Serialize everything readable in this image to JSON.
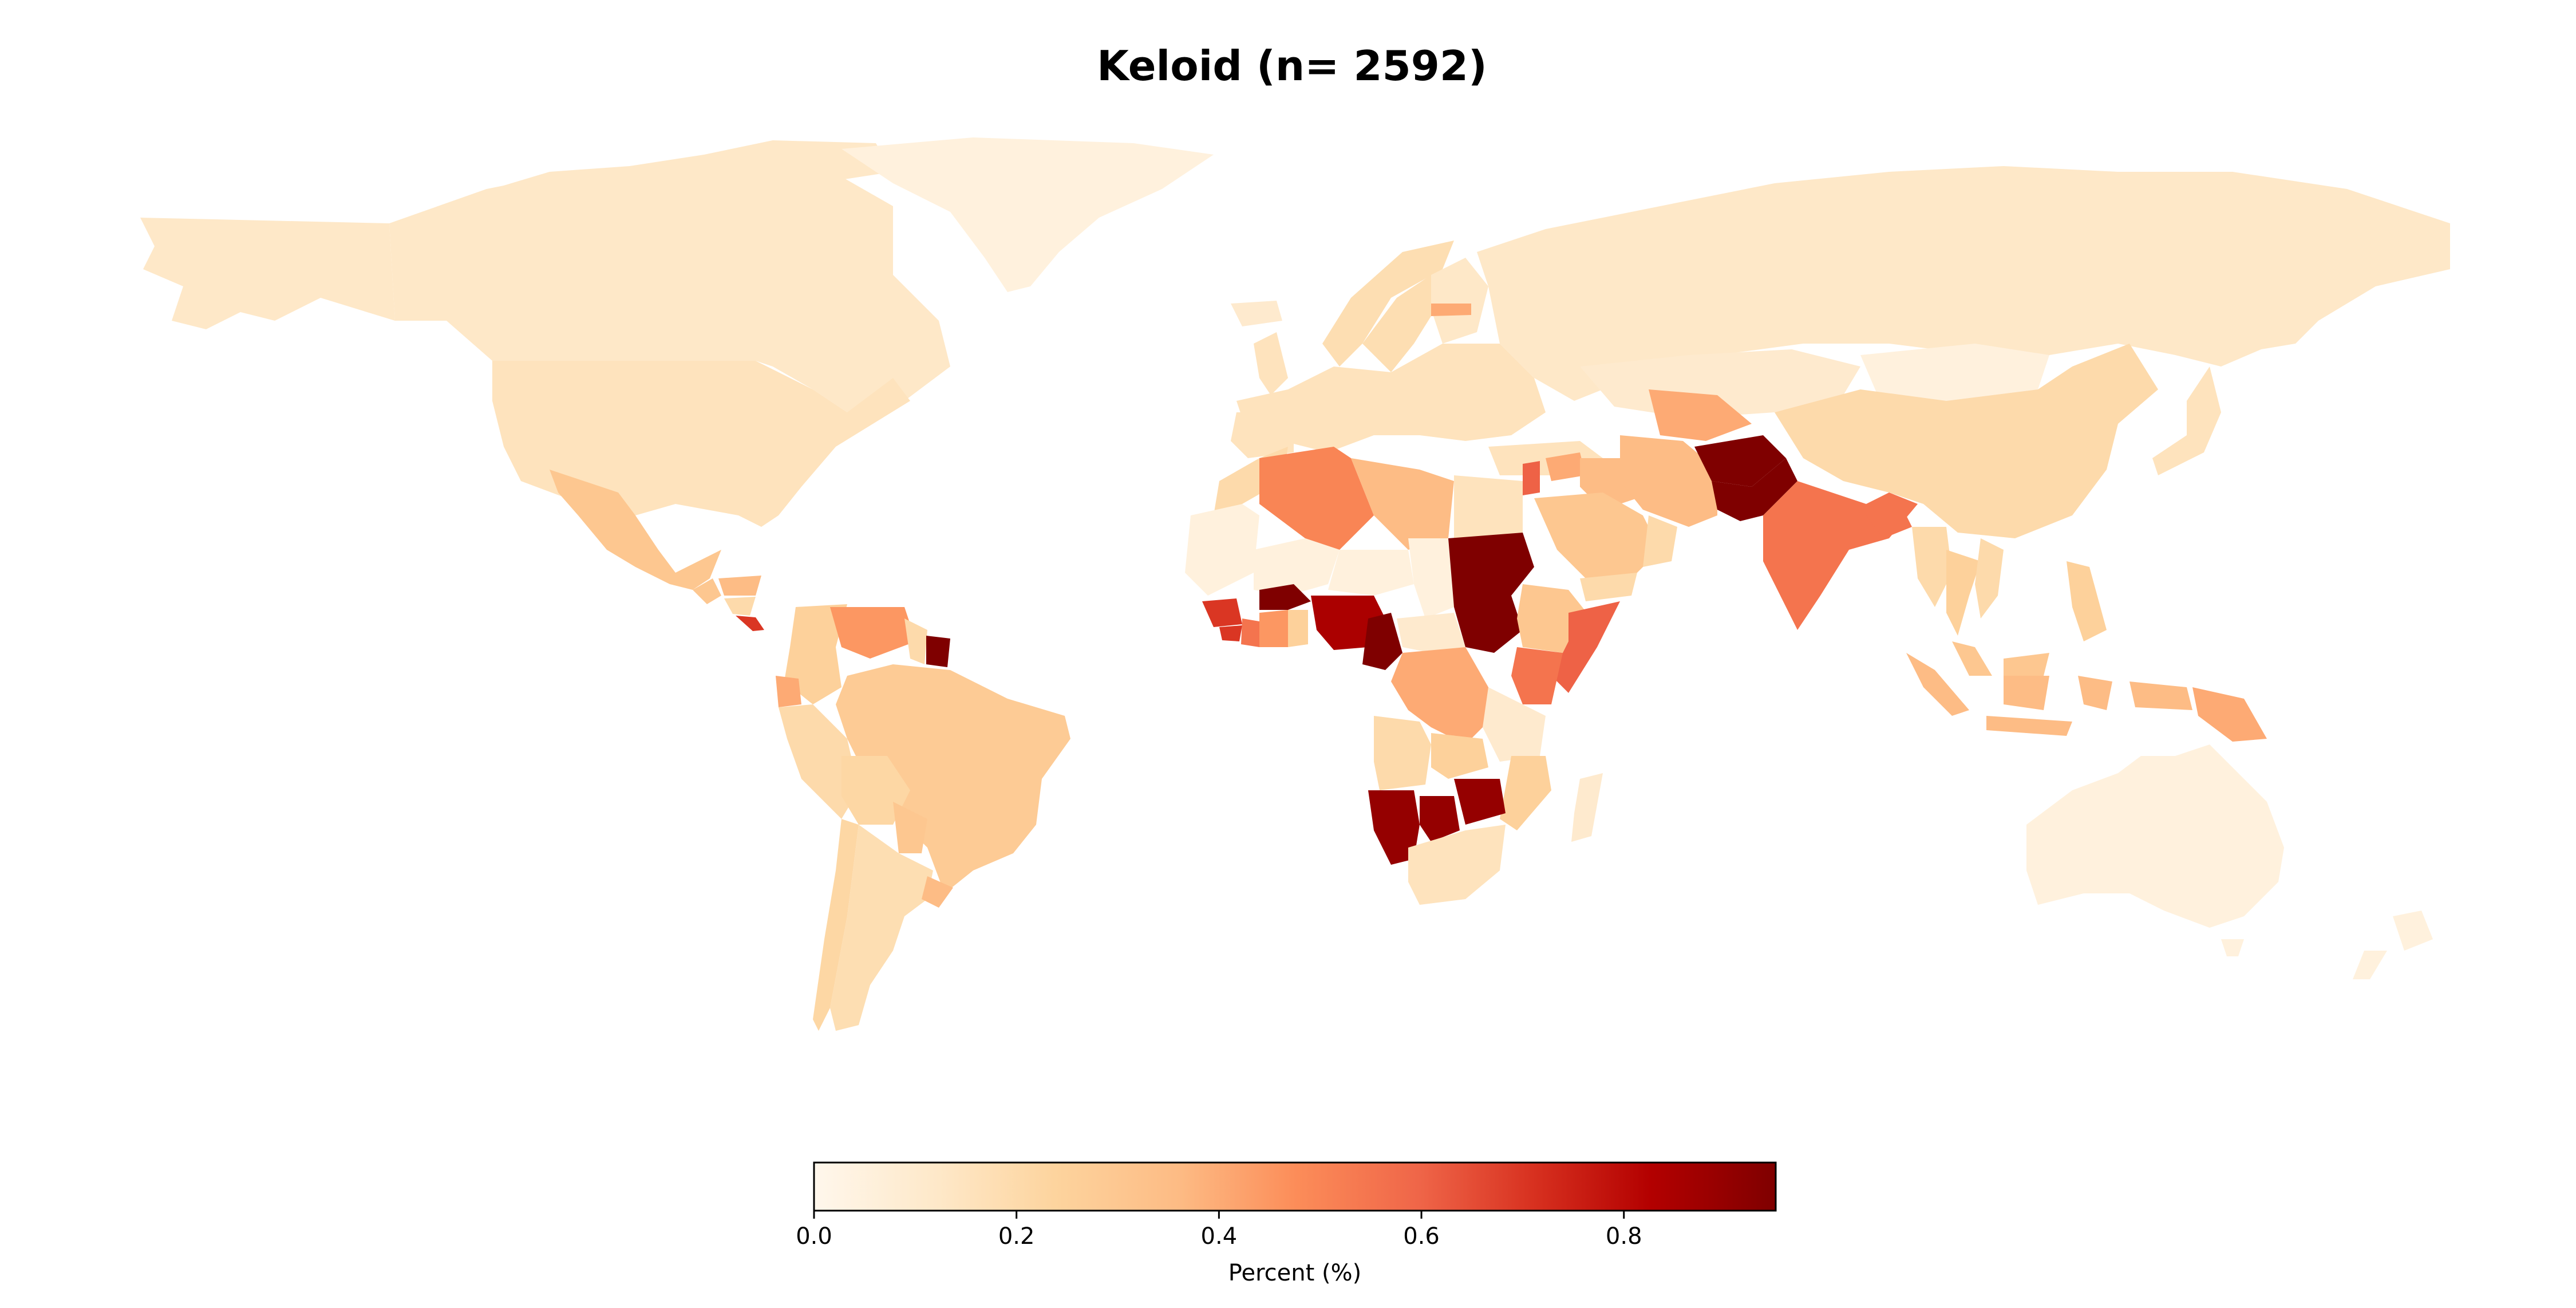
{
  "title": "Keloid (n= 2592)",
  "colorbar": {
    "label": "Percent (%)",
    "ticks": [
      {
        "value": 0.0,
        "label": "0.0"
      },
      {
        "value": 0.2,
        "label": "0.2"
      },
      {
        "value": 0.4,
        "label": "0.4"
      },
      {
        "value": 0.6,
        "label": "0.6"
      },
      {
        "value": 0.8,
        "label": "0.8"
      }
    ],
    "range": [
      0.0,
      0.95
    ],
    "colormap": "OrRd"
  },
  "colors": {
    "c0": "#fff7ec",
    "c1": "#fee8c8",
    "c2": "#fdd49e",
    "c3": "#fdbb84",
    "c4": "#fc8d59",
    "c5": "#ef6548",
    "c6": "#d7301f",
    "c7": "#b30000",
    "c8": "#7f0000"
  },
  "chart_data": {
    "type": "choropleth",
    "title": "Keloid (n= 2592)",
    "value_label": "Percent (%)",
    "value_range": [
      0.0,
      0.95
    ],
    "regions": [
      {
        "name": "Canada",
        "value": 0.12
      },
      {
        "name": "Alaska (United States)",
        "value": 0.12
      },
      {
        "name": "Greenland",
        "value": 0.05
      },
      {
        "name": "United States",
        "value": 0.15
      },
      {
        "name": "Mexico",
        "value": 0.3
      },
      {
        "name": "Guatemala",
        "value": 0.3
      },
      {
        "name": "Honduras",
        "value": 0.35
      },
      {
        "name": "Nicaragua",
        "value": 0.2
      },
      {
        "name": "Costa Rica",
        "value": 0.7
      },
      {
        "name": "Colombia",
        "value": 0.25
      },
      {
        "name": "Venezuela",
        "value": 0.45
      },
      {
        "name": "Guyana",
        "value": 0.2
      },
      {
        "name": "Suriname",
        "value": 0.95
      },
      {
        "name": "Ecuador",
        "value": 0.4
      },
      {
        "name": "Peru",
        "value": 0.2
      },
      {
        "name": "Brazil",
        "value": 0.28
      },
      {
        "name": "Bolivia",
        "value": 0.22
      },
      {
        "name": "Paraguay",
        "value": 0.3
      },
      {
        "name": "Argentina",
        "value": 0.18
      },
      {
        "name": "Chile",
        "value": 0.22
      },
      {
        "name": "Uruguay",
        "value": 0.35
      },
      {
        "name": "Iceland",
        "value": 0.1
      },
      {
        "name": "Norway",
        "value": 0.18
      },
      {
        "name": "Sweden",
        "value": 0.18
      },
      {
        "name": "Finland",
        "value": 0.12
      },
      {
        "name": "United Kingdom",
        "value": 0.15
      },
      {
        "name": "Latvia",
        "value": 0.4
      },
      {
        "name": "Europe (other)",
        "value": 0.15
      },
      {
        "name": "Russia",
        "value": 0.12
      },
      {
        "name": "Kazakhstan",
        "value": 0.1
      },
      {
        "name": "Mongolia",
        "value": 0.05
      },
      {
        "name": "China",
        "value": 0.2
      },
      {
        "name": "Japan",
        "value": 0.15
      },
      {
        "name": "Turkey",
        "value": 0.15
      },
      {
        "name": "Morocco",
        "value": 0.2
      },
      {
        "name": "Algeria",
        "value": 0.5
      },
      {
        "name": "Libya",
        "value": 0.35
      },
      {
        "name": "Egypt",
        "value": 0.15
      },
      {
        "name": "Western Sahara / Mauritania",
        "value": 0.05
      },
      {
        "name": "Mali",
        "value": 0.05
      },
      {
        "name": "Niger",
        "value": 0.05
      },
      {
        "name": "Chad",
        "value": 0.05
      },
      {
        "name": "Sudan",
        "value": 0.95
      },
      {
        "name": "South Sudan",
        "value": 0.95
      },
      {
        "name": "Ethiopia",
        "value": 0.3
      },
      {
        "name": "Somalia",
        "value": 0.6
      },
      {
        "name": "Kenya",
        "value": 0.55
      },
      {
        "name": "Tanzania",
        "value": 0.1
      },
      {
        "name": "Guinea",
        "value": 0.7
      },
      {
        "name": "Sierra Leone",
        "value": 0.7
      },
      {
        "name": "Liberia",
        "value": 0.55
      },
      {
        "name": "Cote d'Ivoire",
        "value": 0.45
      },
      {
        "name": "Ghana",
        "value": 0.25
      },
      {
        "name": "Burkina Faso",
        "value": 0.95
      },
      {
        "name": "Nigeria",
        "value": 0.85
      },
      {
        "name": "Cameroon",
        "value": 0.95
      },
      {
        "name": "Central African Republic",
        "value": 0.1
      },
      {
        "name": "DR Congo",
        "value": 0.4
      },
      {
        "name": "Angola",
        "value": 0.2
      },
      {
        "name": "Zambia",
        "value": 0.25
      },
      {
        "name": "Namibia",
        "value": 0.9
      },
      {
        "name": "Botswana",
        "value": 0.9
      },
      {
        "name": "Zimbabwe",
        "value": 0.9
      },
      {
        "name": "Mozambique",
        "value": 0.25
      },
      {
        "name": "South Africa",
        "value": 0.15
      },
      {
        "name": "Madagascar",
        "value": 0.1
      },
      {
        "name": "Saudi Arabia",
        "value": 0.3
      },
      {
        "name": "Yemen",
        "value": 0.2
      },
      {
        "name": "Oman",
        "value": 0.2
      },
      {
        "name": "Iran",
        "value": 0.35
      },
      {
        "name": "Iraq",
        "value": 0.35
      },
      {
        "name": "Syria",
        "value": 0.4
      },
      {
        "name": "Lebanon / Israel",
        "value": 0.6
      },
      {
        "name": "Turkmenistan / Uzbekistan",
        "value": 0.4
      },
      {
        "name": "Afghanistan",
        "value": 0.95
      },
      {
        "name": "Pakistan",
        "value": 0.95
      },
      {
        "name": "India",
        "value": 0.55
      },
      {
        "name": "Bangladesh",
        "value": 0.55
      },
      {
        "name": "Myanmar",
        "value": 0.2
      },
      {
        "name": "Thailand",
        "value": 0.25
      },
      {
        "name": "Vietnam",
        "value": 0.2
      },
      {
        "name": "Philippines",
        "value": 0.25
      },
      {
        "name": "Malaysia",
        "value": 0.3
      },
      {
        "name": "Indonesia",
        "value": 0.35
      },
      {
        "name": "Papua New Guinea",
        "value": 0.4
      },
      {
        "name": "Australia",
        "value": 0.05
      },
      {
        "name": "New Zealand",
        "value": 0.05
      }
    ]
  }
}
